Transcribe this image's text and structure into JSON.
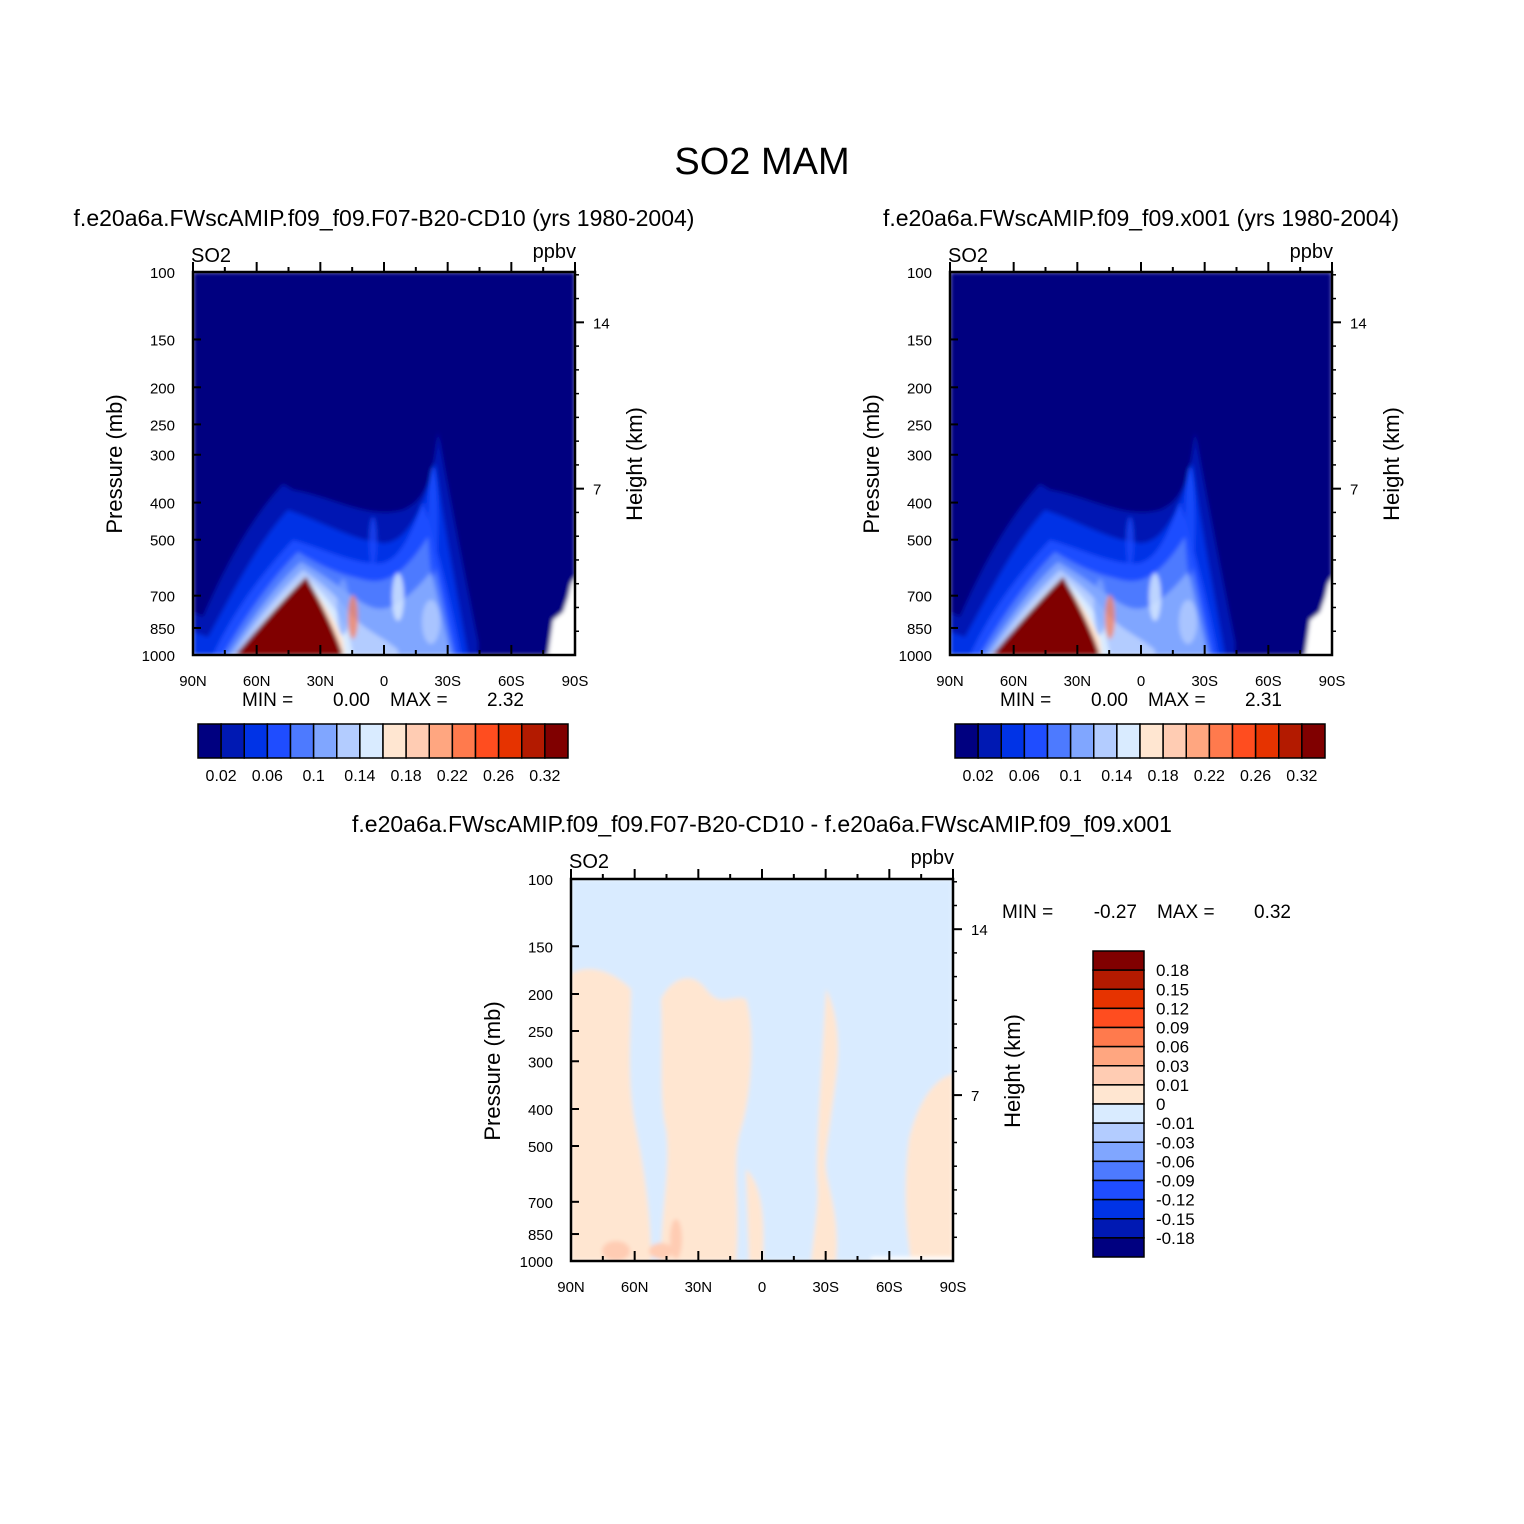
{
  "main_title": "SO2 MAM",
  "chart_data": [
    {
      "type": "contour",
      "id": "case",
      "title": "f.e20a6a.FWscAMIP.f09_f09.F07-B20-CD10 (yrs 1980-2004)",
      "variable": "SO2",
      "units": "ppbv",
      "ylabel": "Pressure (mb)",
      "ylabel_right": "Height (km)",
      "x_ticks": [
        "90N",
        "60N",
        "30N",
        "0",
        "30S",
        "60S",
        "90S"
      ],
      "y_ticks": [
        "100",
        "150",
        "200",
        "250",
        "300",
        "400",
        "500",
        "700",
        "850",
        "1000"
      ],
      "y_ticks_right": [
        "14",
        "7"
      ],
      "min_label": "MIN =",
      "min_value": "0.00",
      "max_label": "MAX =",
      "max_value": "2.32",
      "ylim": [
        1000,
        100
      ],
      "xlim": [
        90,
        -90
      ],
      "colorbar": {
        "orientation": "horizontal",
        "colors": [
          "#000080",
          "#0019b3",
          "#0033e6",
          "#1f4dff",
          "#4d7aff",
          "#80a6ff",
          "#b3ccff",
          "#d9ebff",
          "#ffe6d1",
          "#ffccb3",
          "#ffa680",
          "#ff7a4d",
          "#ff4d1f",
          "#e63300",
          "#b31a00",
          "#800000"
        ],
        "labels": [
          "0.02",
          "0.06",
          "0.1",
          "0.14",
          "0.18",
          "0.22",
          "0.26",
          "0.32"
        ]
      }
    },
    {
      "type": "contour",
      "id": "control",
      "title": "f.e20a6a.FWscAMIP.f09_f09.x001 (yrs 1980-2004)",
      "variable": "SO2",
      "units": "ppbv",
      "ylabel": "Pressure (mb)",
      "ylabel_right": "Height (km)",
      "x_ticks": [
        "90N",
        "60N",
        "30N",
        "0",
        "30S",
        "60S",
        "90S"
      ],
      "y_ticks": [
        "100",
        "150",
        "200",
        "250",
        "300",
        "400",
        "500",
        "700",
        "850",
        "1000"
      ],
      "y_ticks_right": [
        "14",
        "7"
      ],
      "min_label": "MIN =",
      "min_value": "0.00",
      "max_label": "MAX =",
      "max_value": "2.31",
      "ylim": [
        1000,
        100
      ],
      "xlim": [
        90,
        -90
      ],
      "colorbar": {
        "orientation": "horizontal",
        "colors": [
          "#000080",
          "#0019b3",
          "#0033e6",
          "#1f4dff",
          "#4d7aff",
          "#80a6ff",
          "#b3ccff",
          "#d9ebff",
          "#ffe6d1",
          "#ffccb3",
          "#ffa680",
          "#ff7a4d",
          "#ff4d1f",
          "#e63300",
          "#b31a00",
          "#800000"
        ],
        "labels": [
          "0.02",
          "0.06",
          "0.1",
          "0.14",
          "0.18",
          "0.22",
          "0.26",
          "0.32"
        ]
      }
    },
    {
      "type": "contour",
      "id": "diff",
      "title": "f.e20a6a.FWscAMIP.f09_f09.F07-B20-CD10 - f.e20a6a.FWscAMIP.f09_f09.x001",
      "variable": "SO2",
      "units": "ppbv",
      "ylabel": "Pressure (mb)",
      "ylabel_right": "Height (km)",
      "x_ticks": [
        "90N",
        "60N",
        "30N",
        "0",
        "30S",
        "60S",
        "90S"
      ],
      "y_ticks": [
        "100",
        "150",
        "200",
        "250",
        "300",
        "400",
        "500",
        "700",
        "850",
        "1000"
      ],
      "y_ticks_right": [
        "14",
        "7"
      ],
      "min_label": "MIN =",
      "min_value": "-0.27",
      "max_label": "MAX =",
      "max_value": "0.32",
      "ylim": [
        1000,
        100
      ],
      "xlim": [
        90,
        -90
      ],
      "colorbar": {
        "orientation": "vertical",
        "colors": [
          "#800000",
          "#b31a00",
          "#e63300",
          "#ff4d1f",
          "#ff7a4d",
          "#ffa680",
          "#ffccb3",
          "#ffe6d1",
          "#d9ebff",
          "#b3ccff",
          "#80a6ff",
          "#4d7aff",
          "#1f4dff",
          "#0033e6",
          "#0019b3",
          "#000080"
        ],
        "labels": [
          "0.18",
          "0.15",
          "0.12",
          "0.09",
          "0.06",
          "0.03",
          "0.01",
          "0",
          "-0.01",
          "-0.03",
          "-0.06",
          "-0.09",
          "-0.12",
          "-0.15",
          "-0.18"
        ]
      }
    }
  ]
}
